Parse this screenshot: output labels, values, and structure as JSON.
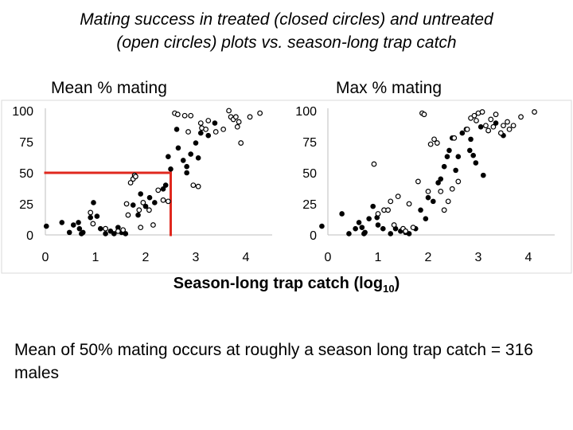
{
  "slide": {
    "title_line1": "Mating success in treated (closed circles) and untreated",
    "title_line2": "(open circles) plots vs. season-long trap catch",
    "panel_left_title": "Mean % mating",
    "panel_right_title": "Max % mating",
    "xlabel_main": "Season-long trap catch (log",
    "xlabel_sub": "10",
    "xlabel_end": ")",
    "note": "Mean of 50% mating occurs at roughly a season long trap catch = 316 males"
  },
  "colors": {
    "marker": "#000000",
    "highlight": "#e0281e",
    "axis": "#bfbfbf"
  },
  "chart_data": [
    {
      "type": "scatter",
      "title": "Mean % mating",
      "xlabel": "Season-long trap catch (log10)",
      "ylabel": "",
      "xlim": [
        0,
        4.5
      ],
      "ylim": [
        0,
        100
      ],
      "xticks": [
        "0",
        "1",
        "2",
        "3",
        "4"
      ],
      "yticks": [
        "0",
        "25",
        "50",
        "75",
        "100"
      ],
      "grid": false,
      "reference_lines": [
        {
          "from": [
            0,
            50
          ],
          "to": [
            2.5,
            50
          ]
        },
        {
          "from": [
            2.5,
            50
          ],
          "to": [
            2.5,
            0
          ]
        }
      ],
      "series": [
        {
          "name": "Treated (closed circles)",
          "fill": "closed",
          "points": [
            [
              0.02,
              7
            ],
            [
              0.33,
              10
            ],
            [
              0.48,
              2
            ],
            [
              0.56,
              8
            ],
            [
              0.66,
              10
            ],
            [
              0.68,
              5
            ],
            [
              0.72,
              1
            ],
            [
              0.75,
              2
            ],
            [
              0.9,
              14
            ],
            [
              0.96,
              26
            ],
            [
              1.03,
              15
            ],
            [
              1.1,
              5
            ],
            [
              1.2,
              1
            ],
            [
              1.3,
              3
            ],
            [
              1.37,
              1
            ],
            [
              1.45,
              6
            ],
            [
              1.52,
              2
            ],
            [
              1.6,
              1
            ],
            [
              1.75,
              24
            ],
            [
              1.85,
              16
            ],
            [
              1.9,
              33
            ],
            [
              2.0,
              23
            ],
            [
              2.08,
              30
            ],
            [
              2.18,
              26
            ],
            [
              2.35,
              37
            ],
            [
              2.4,
              40
            ],
            [
              2.45,
              63
            ],
            [
              2.5,
              53
            ],
            [
              2.62,
              85
            ],
            [
              2.65,
              70
            ],
            [
              2.75,
              60
            ],
            [
              2.82,
              50
            ],
            [
              2.82,
              55
            ],
            [
              2.9,
              65
            ],
            [
              3.0,
              74
            ],
            [
              3.05,
              62
            ],
            [
              3.1,
              82
            ],
            [
              3.25,
              80
            ],
            [
              3.38,
              90
            ]
          ]
        },
        {
          "name": "Untreated (open circles)",
          "fill": "open",
          "points": [
            [
              0.9,
              18
            ],
            [
              0.95,
              9
            ],
            [
              1.2,
              5
            ],
            [
              1.45,
              3
            ],
            [
              1.55,
              4
            ],
            [
              1.62,
              25
            ],
            [
              1.65,
              16
            ],
            [
              1.7,
              42
            ],
            [
              1.75,
              45
            ],
            [
              1.78,
              48
            ],
            [
              1.8,
              47
            ],
            [
              1.87,
              20
            ],
            [
              1.9,
              6
            ],
            [
              1.95,
              26
            ],
            [
              2.07,
              20
            ],
            [
              2.15,
              8
            ],
            [
              2.25,
              36
            ],
            [
              2.35,
              28
            ],
            [
              2.45,
              27
            ],
            [
              2.58,
              98
            ],
            [
              2.64,
              97
            ],
            [
              2.78,
              96
            ],
            [
              2.85,
              83
            ],
            [
              2.9,
              96
            ],
            [
              2.95,
              40
            ],
            [
              3.05,
              39
            ],
            [
              3.1,
              90
            ],
            [
              3.12,
              86
            ],
            [
              3.2,
              85
            ],
            [
              3.25,
              92
            ],
            [
              3.4,
              83
            ],
            [
              3.55,
              85
            ],
            [
              3.66,
              100
            ],
            [
              3.7,
              95
            ],
            [
              3.75,
              93
            ],
            [
              3.8,
              95
            ],
            [
              3.83,
              87
            ],
            [
              3.86,
              91
            ],
            [
              3.9,
              74
            ],
            [
              4.08,
              95
            ],
            [
              4.28,
              98
            ]
          ]
        }
      ]
    },
    {
      "type": "scatter",
      "title": "Max % mating",
      "xlabel": "Season-long trap catch (log10)",
      "ylabel": "",
      "xlim": [
        0,
        4.5
      ],
      "ylim": [
        0,
        100
      ],
      "xticks": [
        "0",
        "1",
        "2",
        "3",
        "4"
      ],
      "yticks": [
        "0",
        "25",
        "50",
        "75",
        "100"
      ],
      "grid": false,
      "series": [
        {
          "name": "Treated (closed circles)",
          "fill": "closed",
          "points": [
            [
              -0.12,
              7
            ],
            [
              0.28,
              17
            ],
            [
              0.42,
              1
            ],
            [
              0.55,
              5
            ],
            [
              0.62,
              10
            ],
            [
              0.68,
              6
            ],
            [
              0.72,
              1
            ],
            [
              0.74,
              2
            ],
            [
              0.82,
              13
            ],
            [
              0.9,
              23
            ],
            [
              0.98,
              14
            ],
            [
              1.0,
              8
            ],
            [
              1.1,
              5
            ],
            [
              1.25,
              1
            ],
            [
              1.35,
              5
            ],
            [
              1.45,
              3
            ],
            [
              1.55,
              2
            ],
            [
              1.62,
              1
            ],
            [
              1.75,
              5
            ],
            [
              1.85,
              20
            ],
            [
              1.95,
              13
            ],
            [
              2.0,
              30
            ],
            [
              2.1,
              27
            ],
            [
              2.2,
              42
            ],
            [
              2.25,
              45
            ],
            [
              2.32,
              55
            ],
            [
              2.38,
              63
            ],
            [
              2.42,
              68
            ],
            [
              2.48,
              78
            ],
            [
              2.55,
              52
            ],
            [
              2.6,
              63
            ],
            [
              2.68,
              82
            ],
            [
              2.76,
              85
            ],
            [
              2.83,
              68
            ],
            [
              2.85,
              77
            ],
            [
              2.9,
              64
            ],
            [
              2.95,
              58
            ],
            [
              3.05,
              87
            ],
            [
              3.1,
              48
            ],
            [
              3.2,
              84
            ],
            [
              3.35,
              90
            ],
            [
              3.5,
              80
            ]
          ]
        },
        {
          "name": "Untreated (open circles)",
          "fill": "open",
          "points": [
            [
              0.92,
              57
            ],
            [
              1.0,
              17
            ],
            [
              1.12,
              20
            ],
            [
              1.2,
              20
            ],
            [
              1.25,
              27
            ],
            [
              1.32,
              8
            ],
            [
              1.4,
              31
            ],
            [
              1.5,
              5
            ],
            [
              1.55,
              3
            ],
            [
              1.62,
              25
            ],
            [
              1.7,
              6
            ],
            [
              1.8,
              43
            ],
            [
              1.88,
              98
            ],
            [
              1.92,
              97
            ],
            [
              2.0,
              35
            ],
            [
              2.05,
              73
            ],
            [
              2.12,
              77
            ],
            [
              2.18,
              74
            ],
            [
              2.25,
              35
            ],
            [
              2.32,
              20
            ],
            [
              2.4,
              27
            ],
            [
              2.48,
              37
            ],
            [
              2.52,
              78
            ],
            [
              2.6,
              43
            ],
            [
              2.78,
              85
            ],
            [
              2.85,
              94
            ],
            [
              2.92,
              96
            ],
            [
              2.96,
              92
            ],
            [
              3.0,
              98
            ],
            [
              3.08,
              99
            ],
            [
              3.15,
              88
            ],
            [
              3.2,
              84
            ],
            [
              3.25,
              93
            ],
            [
              3.3,
              87
            ],
            [
              3.35,
              97
            ],
            [
              3.45,
              82
            ],
            [
              3.5,
              88
            ],
            [
              3.58,
              91
            ],
            [
              3.62,
              85
            ],
            [
              3.7,
              88
            ],
            [
              3.85,
              95
            ],
            [
              4.12,
              99
            ]
          ]
        }
      ]
    }
  ]
}
